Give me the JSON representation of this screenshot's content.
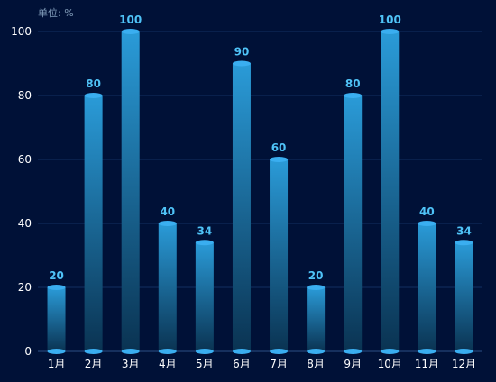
{
  "chart_data": {
    "type": "bar",
    "unit_label": "单位: %",
    "categories": [
      "1月",
      "2月",
      "3月",
      "4月",
      "5月",
      "6月",
      "7月",
      "8月",
      "9月",
      "10月",
      "11月",
      "12月"
    ],
    "values": [
      20,
      80,
      100,
      40,
      34,
      90,
      60,
      20,
      80,
      100,
      40,
      34
    ],
    "ylim": [
      0,
      100
    ],
    "yticks": [
      0,
      20,
      40,
      60,
      80,
      100
    ],
    "grid": true,
    "colors": {
      "background": "#001137",
      "bar_top": "#2a9bd8",
      "bar_bottom": "#0a3352",
      "bar_cap": "#3aaef0",
      "data_label": "#4fc3f7",
      "axis_label": "#ffffff",
      "unit_label": "#7f9bb8",
      "grid": "#123061",
      "axis_line": "#2b4f86"
    }
  }
}
